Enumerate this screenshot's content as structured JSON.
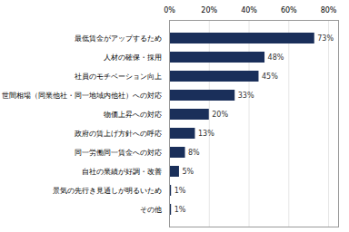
{
  "chart_data": {
    "type": "bar",
    "orientation": "horizontal",
    "categories": [
      "その他",
      "景気の先行き見通しが明るいため",
      "自社の業績が好調・改善",
      "同一労働同一賃金への対応",
      "政府の賃上げ方針への呼応",
      "物価上昇への対応",
      "世間相場（同業他社・同一地域内他社）への対応",
      "社員のモチベーション向上",
      "人材の確保・採用",
      "最低賃金がアップするため"
    ],
    "values": [
      1,
      1,
      5,
      8,
      13,
      20,
      33,
      45,
      48,
      73
    ],
    "value_labels": [
      "1%",
      "1%",
      "5%",
      "8%",
      "13%",
      "20%",
      "33%",
      "45%",
      "48%",
      "73%"
    ],
    "data_labels": true,
    "color": "#1a2f5a",
    "xlim": [
      0,
      85
    ],
    "xticks": [
      {
        "value": 0,
        "label": "0%"
      },
      {
        "value": 20,
        "label": "20%"
      },
      {
        "value": 40,
        "label": "40%"
      },
      {
        "value": 60,
        "label": "60%"
      },
      {
        "value": 80,
        "label": "80%"
      }
    ],
    "grid": true
  }
}
